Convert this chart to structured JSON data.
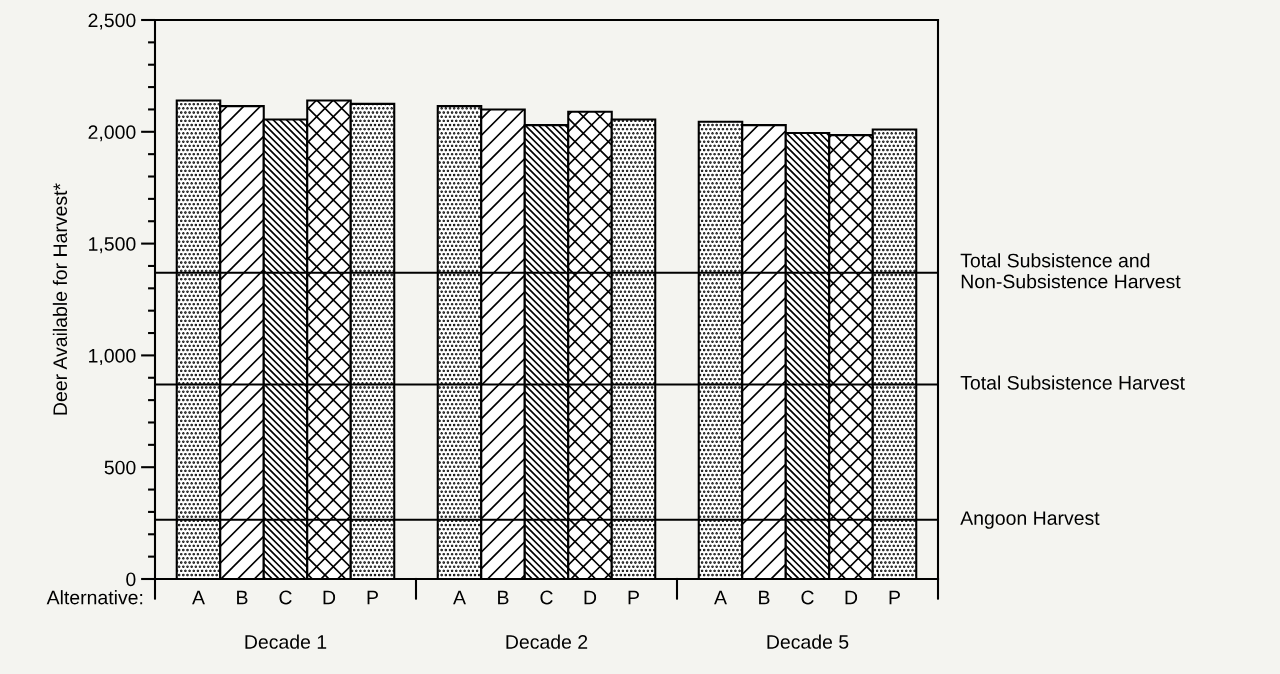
{
  "chart_data": {
    "type": "bar",
    "ylabel": "Deer Available for Harvest*",
    "categories": [
      "A",
      "B",
      "C",
      "D",
      "P",
      null,
      "A",
      "B",
      "C",
      "D",
      "P",
      null,
      "A",
      "B",
      "C",
      "D",
      "P"
    ],
    "values": [
      2140,
      2115,
      2055,
      2140,
      2125,
      null,
      2115,
      2100,
      2030,
      2090,
      2055,
      null,
      2045,
      2030,
      1995,
      1985,
      2010
    ],
    "ylim": [
      0,
      2500
    ],
    "yticks": [
      {
        "value": 0,
        "label": "0"
      },
      {
        "value": 100,
        "label": null
      },
      {
        "value": 200,
        "label": null
      },
      {
        "value": 300,
        "label": null
      },
      {
        "value": 400,
        "label": null
      },
      {
        "value": 500,
        "label": "500"
      },
      {
        "value": 600,
        "label": null
      },
      {
        "value": 700,
        "label": null
      },
      {
        "value": 800,
        "label": null
      },
      {
        "value": 900,
        "label": null
      },
      {
        "value": 1000,
        "label": "1,000"
      },
      {
        "value": 1100,
        "label": null
      },
      {
        "value": 1200,
        "label": null
      },
      {
        "value": 1300,
        "label": null
      },
      {
        "value": 1400,
        "label": null
      },
      {
        "value": 1500,
        "label": "1,500"
      },
      {
        "value": 1600,
        "label": null
      },
      {
        "value": 1700,
        "label": null
      },
      {
        "value": 1800,
        "label": null
      },
      {
        "value": 1900,
        "label": null
      },
      {
        "value": 2000,
        "label": "2,000"
      },
      {
        "value": 2100,
        "label": null
      },
      {
        "value": 2200,
        "label": null
      },
      {
        "value": 2300,
        "label": null
      },
      {
        "value": 2400,
        "label": null
      },
      {
        "value": 2500,
        "label": "2,500"
      }
    ],
    "ref_lines": [
      {
        "axis": "y",
        "value": 1370,
        "label": "Total Subsistence and\nNon-Subsistence Harvest",
        "color": "#000000"
      },
      {
        "axis": "y",
        "value": 870,
        "label": "Total Subsistence Harvest",
        "color": "#000000"
      },
      {
        "axis": "y",
        "value": 265,
        "label": "Angoon Harvest",
        "color": "#000000"
      }
    ],
    "annotations": [
      "Alternative:",
      "Decade 1",
      "Decade 2",
      "Decade 5"
    ],
    "grid": false,
    "legend": false
  }
}
